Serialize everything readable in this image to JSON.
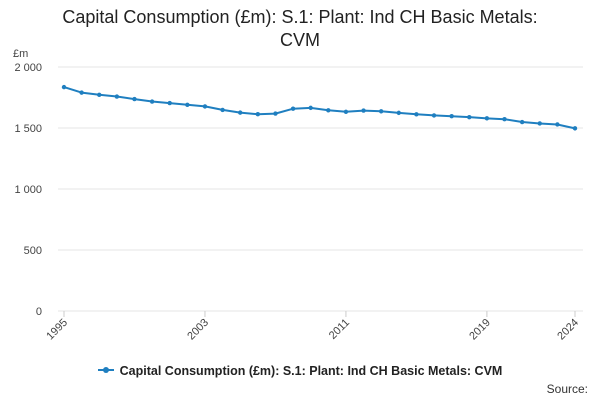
{
  "chart_data": {
    "type": "line",
    "title_lines": [
      "Capital Consumption (£m): S.1: Plant: Ind CH Basic Metals:",
      "CVM"
    ],
    "ylabel": "£m",
    "xlabel": "",
    "ylim": [
      0,
      2000
    ],
    "yticks": [
      0,
      500,
      1000,
      1500,
      2000
    ],
    "ytick_labels": [
      "0",
      "500",
      "1 000",
      "1 500",
      "2 000"
    ],
    "xlim": [
      1995,
      2024
    ],
    "xticks": [
      1995,
      2003,
      2011,
      2019,
      2024
    ],
    "xtick_labels": [
      "1995",
      "2003",
      "2011",
      "2019",
      "2024"
    ],
    "grid": true,
    "series": [
      {
        "name": "Capital Consumption (£m): S.1: Plant: Ind CH Basic Metals: CVM",
        "color": "#1f7fc0",
        "x": [
          1995,
          1996,
          1997,
          1998,
          1999,
          2000,
          2001,
          2002,
          2003,
          2004,
          2005,
          2006,
          2007,
          2008,
          2009,
          2010,
          2011,
          2012,
          2013,
          2014,
          2015,
          2016,
          2017,
          2018,
          2019,
          2020,
          2021,
          2022,
          2023,
          2024
        ],
        "values": [
          1835,
          1790,
          1772,
          1758,
          1737,
          1717,
          1704,
          1690,
          1677,
          1648,
          1626,
          1613,
          1618,
          1658,
          1665,
          1645,
          1633,
          1643,
          1637,
          1624,
          1612,
          1603,
          1597,
          1589,
          1579,
          1572,
          1549,
          1537,
          1529,
          1497
        ]
      }
    ]
  },
  "legend": {
    "label": "Capital Consumption (£m): S.1: Plant: Ind CH Basic Metals: CVM"
  },
  "source": {
    "label": "Source:"
  }
}
